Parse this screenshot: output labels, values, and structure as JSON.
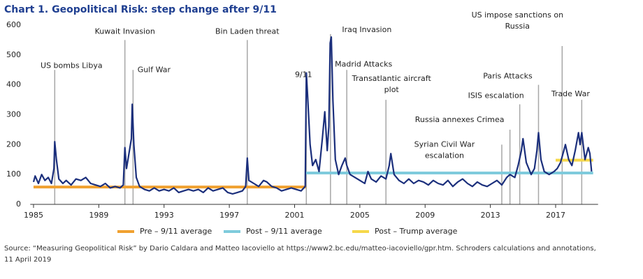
{
  "chart_data": {
    "type": "line",
    "title": "Chart 1. Geopolitical Risk:  step change after 9/11",
    "source": [
      "Source: “Measuring Geopolitical Risk” by Dario Caldara and Matteo Iacoviello at https://www2.bc.edu/matteo-iacoviello/gpr.htm. Schroders calculations and annotations,",
      "11 April 2019"
    ],
    "xlim": [
      1984.8,
      2019.6
    ],
    "xticks": [
      1985,
      1989,
      1993,
      1997,
      2001,
      2005,
      2009,
      2013,
      2017
    ],
    "ylim": [
      0,
      600
    ],
    "yticks": [
      0,
      100,
      200,
      300,
      400,
      500,
      600
    ],
    "grid": false,
    "series": [
      {
        "color": "#1b2f7c",
        "x": [
          1985.0,
          1985.1,
          1985.3,
          1985.5,
          1985.7,
          1985.9,
          1986.1,
          1986.25,
          1986.3,
          1986.4,
          1986.55,
          1986.8,
          1987.0,
          1987.3,
          1987.6,
          1987.9,
          1988.2,
          1988.5,
          1988.8,
          1989.1,
          1989.4,
          1989.7,
          1990.0,
          1990.3,
          1990.5,
          1990.6,
          1990.7,
          1990.85,
          1991.0,
          1991.05,
          1991.15,
          1991.3,
          1991.5,
          1991.8,
          1992.1,
          1992.4,
          1992.7,
          1993.0,
          1993.3,
          1993.6,
          1993.9,
          1994.2,
          1994.5,
          1994.8,
          1995.1,
          1995.4,
          1995.7,
          1996.0,
          1996.3,
          1996.6,
          1996.9,
          1997.2,
          1997.5,
          1997.8,
          1998.0,
          1998.1,
          1998.2,
          1998.5,
          1998.8,
          1999.1,
          1999.3,
          1999.6,
          1999.9,
          2000.2,
          2000.5,
          2000.8,
          2001.1,
          2001.4,
          2001.65,
          2001.72,
          2001.8,
          2001.95,
          2002.1,
          2002.3,
          2002.5,
          2002.7,
          2002.85,
          2003.0,
          2003.1,
          2003.18,
          2003.25,
          2003.35,
          2003.5,
          2003.7,
          2003.9,
          2004.1,
          2004.2,
          2004.4,
          2004.7,
          2005.0,
          2005.3,
          2005.5,
          2005.7,
          2006.0,
          2006.3,
          2006.6,
          2006.8,
          2006.9,
          2007.1,
          2007.4,
          2007.7,
          2008.0,
          2008.3,
          2008.6,
          2008.9,
          2009.2,
          2009.5,
          2009.8,
          2010.1,
          2010.4,
          2010.7,
          2011.0,
          2011.3,
          2011.6,
          2011.9,
          2012.2,
          2012.5,
          2012.8,
          2013.1,
          2013.4,
          2013.7,
          2014.0,
          2014.2,
          2014.5,
          2014.7,
          2014.9,
          2015.0,
          2015.2,
          2015.5,
          2015.7,
          2015.85,
          2015.95,
          2016.1,
          2016.3,
          2016.6,
          2016.9,
          2017.1,
          2017.3,
          2017.5,
          2017.6,
          2017.8,
          2018.0,
          2018.2,
          2018.4,
          2018.5,
          2018.6,
          2018.8,
          2019.0,
          2019.1,
          2019.2
        ],
        "values": [
          75,
          95,
          70,
          100,
          80,
          90,
          70,
          120,
          210,
          150,
          85,
          70,
          80,
          65,
          85,
          80,
          90,
          70,
          65,
          60,
          70,
          55,
          60,
          55,
          65,
          190,
          120,
          170,
          220,
          335,
          200,
          90,
          60,
          50,
          45,
          55,
          45,
          50,
          45,
          55,
          40,
          45,
          50,
          45,
          50,
          40,
          55,
          45,
          50,
          55,
          40,
          35,
          40,
          45,
          60,
          155,
          80,
          70,
          60,
          80,
          75,
          60,
          55,
          45,
          50,
          55,
          50,
          45,
          60,
          440,
          360,
          200,
          130,
          150,
          110,
          220,
          310,
          180,
          260,
          540,
          560,
          350,
          150,
          100,
          130,
          155,
          130,
          100,
          90,
          80,
          70,
          110,
          85,
          75,
          95,
          85,
          130,
          170,
          100,
          80,
          70,
          85,
          70,
          80,
          75,
          65,
          80,
          70,
          65,
          80,
          60,
          75,
          85,
          70,
          60,
          75,
          65,
          60,
          70,
          80,
          65,
          90,
          100,
          90,
          130,
          180,
          220,
          140,
          100,
          120,
          180,
          240,
          150,
          110,
          100,
          110,
          120,
          140,
          180,
          200,
          150,
          130,
          180,
          240,
          200,
          240,
          150,
          190,
          170,
          110
        ]
      }
    ],
    "averages": [
      {
        "name": "Pre – 9/11 average",
        "color": "#f0a130",
        "value": 58,
        "x": [
          1985.0,
          2001.7
        ]
      },
      {
        "name": "Post – 9/11 average",
        "color": "#7fcbdc",
        "value": 105,
        "x": [
          2001.7,
          2019.3
        ]
      },
      {
        "name": "Post – Trump average",
        "color": "#f6d84a",
        "value": 148,
        "x": [
          2017.0,
          2019.3
        ]
      }
    ],
    "annotations": [
      {
        "text": [
          "US bombs Libya"
        ],
        "x": 1986.3,
        "top": 450
      },
      {
        "text": [
          "Kuwait Invasion"
        ],
        "x": 1990.6,
        "top": 550
      },
      {
        "text": [
          "Gulf War"
        ],
        "x": 1991.1,
        "top": 450
      },
      {
        "text": [
          "Bin Laden threat"
        ],
        "x": 1998.1,
        "top": 550
      },
      {
        "text": [
          "9/11"
        ],
        "x": 2001.72,
        "top": 400
      },
      {
        "text": [
          "Iraq Invasion"
        ],
        "x": 2003.2,
        "top": 570
      },
      {
        "text": [
          "Madrid Attacks"
        ],
        "x": 2004.2,
        "top": 450
      },
      {
        "text": [
          "Transatlantic aircraft",
          "plot"
        ],
        "x": 2006.6,
        "top": 350
      },
      {
        "text": [
          "Russia annexes Crimea"
        ],
        "x": 2014.2,
        "top": 250
      },
      {
        "text": [
          "Syrian Civil War",
          "escalation"
        ],
        "x": 2013.7,
        "top": 200
      },
      {
        "text": [
          "ISIS escalation"
        ],
        "x": 2014.8,
        "top": 335
      },
      {
        "text": [
          "Paris Attacks"
        ],
        "x": 2015.95,
        "top": 400
      },
      {
        "text": [
          "US impose sanctions on",
          "Russia"
        ],
        "x": 2017.4,
        "top": 530
      },
      {
        "text": [
          "Trade War"
        ],
        "x": 2018.6,
        "top": 350
      }
    ]
  }
}
